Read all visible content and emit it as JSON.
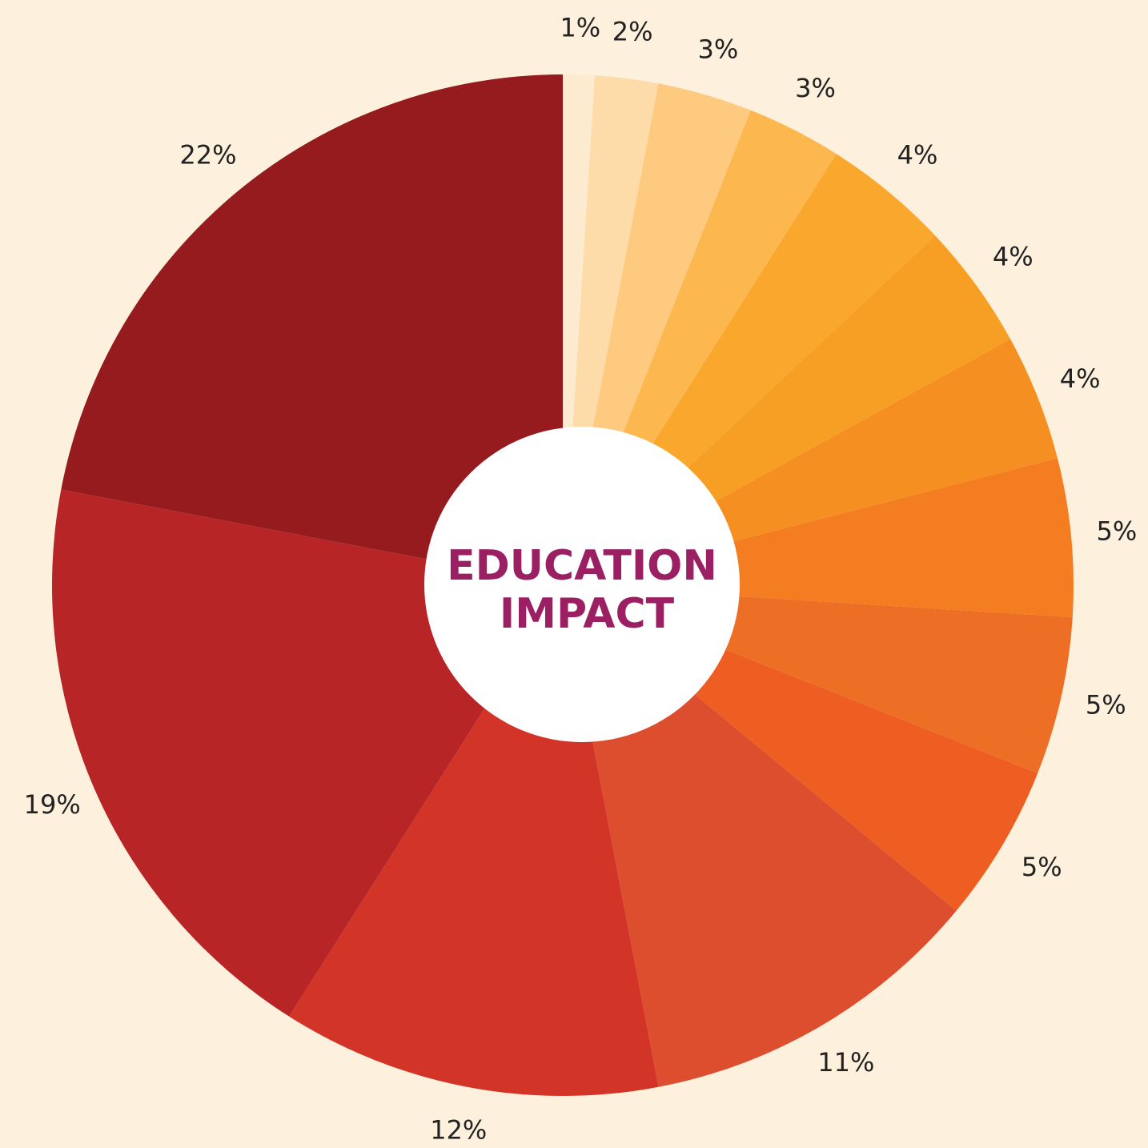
{
  "chart_data": {
    "type": "pie",
    "center_lines": [
      "EDUCATION",
      "IMPACT"
    ],
    "values": [
      1,
      2,
      3,
      3,
      4,
      4,
      4,
      5,
      5,
      5,
      11,
      12,
      19,
      22
    ],
    "value_labels": [
      "1%",
      "2%",
      "3%",
      "3%",
      "4%",
      "4%",
      "4%",
      "5%",
      "5%",
      "5%",
      "11%",
      "12%",
      "19%",
      "22%"
    ],
    "colors": [
      "#fdebd0",
      "#fddcaa",
      "#fdca80",
      "#fcb74e",
      "#f9a72d",
      "#f79e25",
      "#f58f22",
      "#f37d20",
      "#ed6e25",
      "#ee5d22",
      "#dd4e2e",
      "#d23527",
      "#b72526",
      "#951b1f"
    ]
  }
}
